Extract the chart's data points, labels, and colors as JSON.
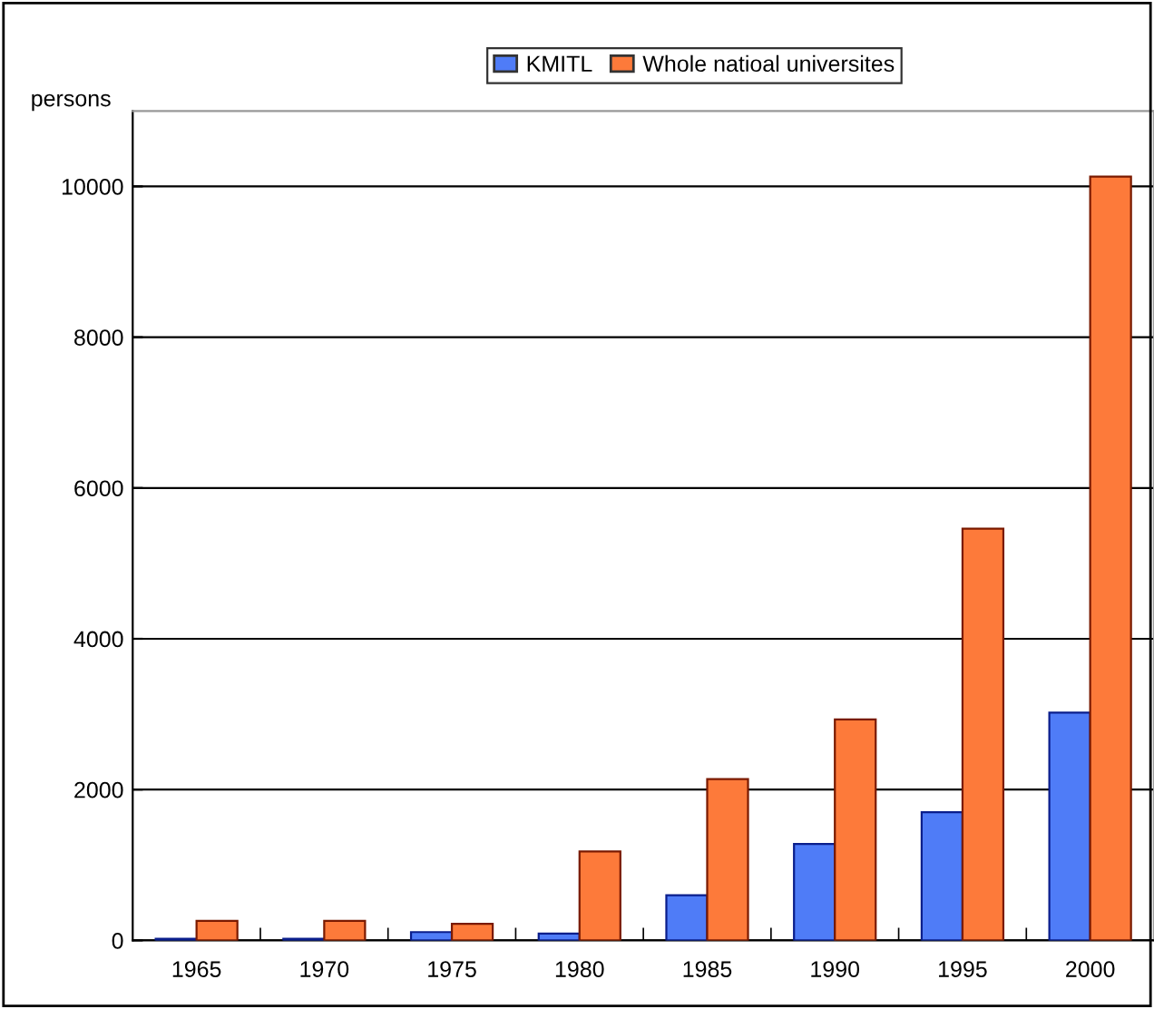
{
  "chart_data": {
    "type": "bar",
    "ylabel": "persons",
    "categories": [
      "1965",
      "1970",
      "1975",
      "1980",
      "1985",
      "1990",
      "1995",
      "2000"
    ],
    "series": [
      {
        "name": "KMITL",
        "color": "#4f7cf7",
        "values": [
          20,
          20,
          110,
          90,
          600,
          1280,
          1700,
          3020
        ]
      },
      {
        "name": "Whole natioal universites",
        "color": "#fd7a3a",
        "values": [
          260,
          260,
          220,
          1180,
          2140,
          2930,
          5460,
          10130
        ]
      }
    ],
    "ylim": [
      0,
      11000
    ],
    "yticks": [
      0,
      2000,
      4000,
      6000,
      8000,
      10000
    ],
    "grid": "y",
    "legend": "top"
  }
}
